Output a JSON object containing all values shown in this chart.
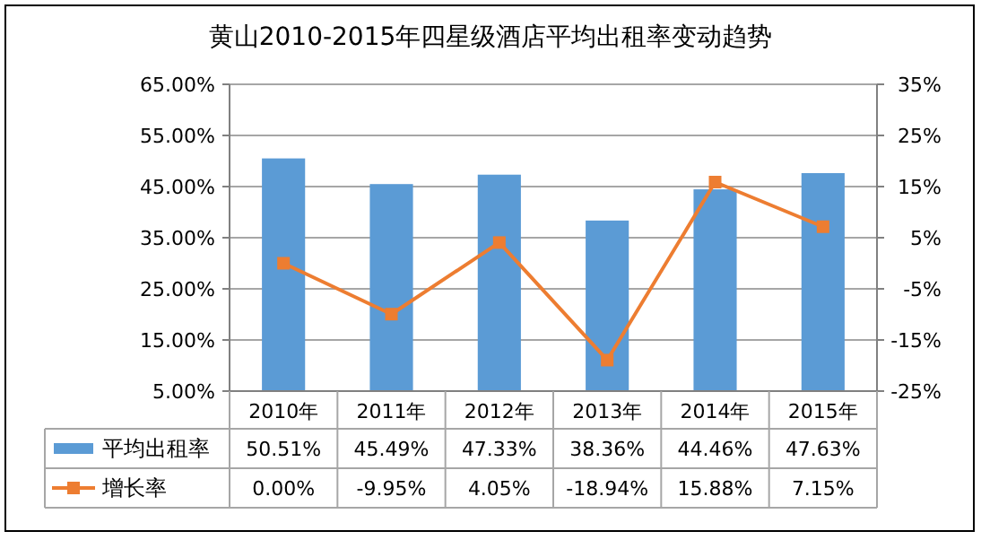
{
  "chart_data": {
    "type": "bar",
    "title": "黄山2010-2015年四星级酒店平均出租率变动趋势",
    "categories": [
      "2010年",
      "2011年",
      "2012年",
      "2013年",
      "2014年",
      "2015年"
    ],
    "series": [
      {
        "name": "平均出租率",
        "color": "#5b9bd5",
        "values": [
          50.51,
          45.49,
          47.33,
          38.36,
          44.46,
          47.63
        ],
        "value_labels": [
          "50.51%",
          "45.49%",
          "47.33%",
          "38.36%",
          "44.46%",
          "47.63%"
        ]
      },
      {
        "name": "增长率",
        "type": "line",
        "axis": "y2",
        "color": "#ed7d31",
        "marker": "square",
        "values": [
          0.0,
          -9.95,
          4.05,
          -18.94,
          15.88,
          7.15
        ],
        "value_labels": [
          "0.00%",
          "-9.95%",
          "4.05%",
          "-18.94%",
          "15.88%",
          "7.15%"
        ]
      }
    ],
    "ylim": [
      5,
      65
    ],
    "yticks": [
      {
        "value": 5,
        "label": "5.00%"
      },
      {
        "value": 15,
        "label": "15.00%"
      },
      {
        "value": 25,
        "label": "25.00%"
      },
      {
        "value": 35,
        "label": "35.00%"
      },
      {
        "value": 45,
        "label": "45.00%"
      },
      {
        "value": 55,
        "label": "55.00%"
      },
      {
        "value": 65,
        "label": "65.00%"
      }
    ],
    "y2lim": [
      -25,
      35
    ],
    "y2ticks": [
      {
        "value": -25,
        "label": "-25%"
      },
      {
        "value": -15,
        "label": "-15%"
      },
      {
        "value": -5,
        "label": "-5%"
      },
      {
        "value": 5,
        "label": "5%"
      },
      {
        "value": 15,
        "label": "15%"
      },
      {
        "value": 25,
        "label": "25%"
      },
      {
        "value": 35,
        "label": "35%"
      }
    ],
    "grid": "y",
    "legend": "bottom"
  }
}
